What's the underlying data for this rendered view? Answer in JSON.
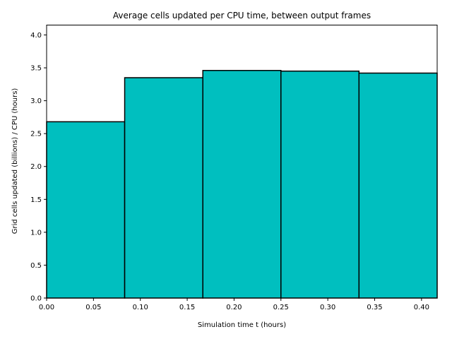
{
  "chart_data": {
    "type": "bar",
    "title": "Average cells updated per CPU time, between output frames",
    "xlabel": "Simulation time t (hours)",
    "ylabel": "Grid cells updated (billions) / CPU (hours)",
    "bins": [
      {
        "x0": 0.0,
        "x1": 0.0833,
        "value": 2.68
      },
      {
        "x0": 0.0833,
        "x1": 0.1667,
        "value": 3.35
      },
      {
        "x0": 0.1667,
        "x1": 0.25,
        "value": 3.46
      },
      {
        "x0": 0.25,
        "x1": 0.3333,
        "value": 3.45
      },
      {
        "x0": 0.3333,
        "x1": 0.4167,
        "value": 3.42
      }
    ],
    "xlim": [
      0.0,
      0.4167
    ],
    "ylim": [
      0.0,
      4.15
    ],
    "xticks": [
      "0.00",
      "0.05",
      "0.10",
      "0.15",
      "0.20",
      "0.25",
      "0.30",
      "0.35",
      "0.40"
    ],
    "yticks": [
      "0.0",
      "0.5",
      "1.0",
      "1.5",
      "2.0",
      "2.5",
      "3.0",
      "3.5",
      "4.0"
    ],
    "bar_color": "#00bfbf",
    "edge_color": "#000000",
    "grid": false,
    "legend": "none"
  }
}
